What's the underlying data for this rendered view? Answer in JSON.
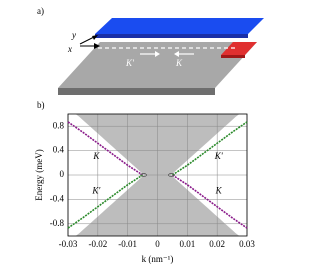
{
  "panel_a": {
    "label": "a)",
    "y_label": "y",
    "x_label": "x",
    "left_valley": "K'",
    "right_valley": "K"
  },
  "chart_data": {
    "type": "line",
    "panel_label": "b)",
    "x_label": "k (nm⁻¹)",
    "y_label": "Energy (meV)",
    "xlim": [
      -0.03,
      0.03
    ],
    "ylim": [
      -1,
      1
    ],
    "xticks": [
      -0.03,
      -0.02,
      -0.01,
      0,
      0.01,
      0.02,
      0.03
    ],
    "yticks": [
      0.8,
      0.4,
      0,
      -0.4,
      -0.8
    ],
    "annotations": [
      "K",
      "K'",
      "K'",
      "K"
    ],
    "series": [
      {
        "color": "#8a1a8a",
        "x": [
          -0.03,
          -0.025,
          -0.02,
          -0.015,
          -0.01,
          -0.005
        ],
        "values": [
          0.87,
          0.7,
          0.52,
          0.34,
          0.16,
          0.0
        ]
      },
      {
        "color": "#8a1a8a",
        "x": [
          0.005,
          0.01,
          0.015,
          0.02,
          0.025,
          0.03
        ],
        "values": [
          0.0,
          -0.16,
          -0.34,
          -0.52,
          -0.7,
          -0.87
        ]
      },
      {
        "color": "#2a8a2a",
        "x": [
          -0.03,
          -0.025,
          -0.02,
          -0.015,
          -0.01,
          -0.005
        ],
        "values": [
          -0.87,
          -0.7,
          -0.52,
          -0.34,
          -0.16,
          0.0
        ]
      },
      {
        "color": "#2a8a2a",
        "x": [
          0.005,
          0.01,
          0.015,
          0.02,
          0.025,
          0.03
        ],
        "values": [
          0.0,
          0.16,
          0.34,
          0.52,
          0.7,
          0.87
        ]
      }
    ]
  }
}
